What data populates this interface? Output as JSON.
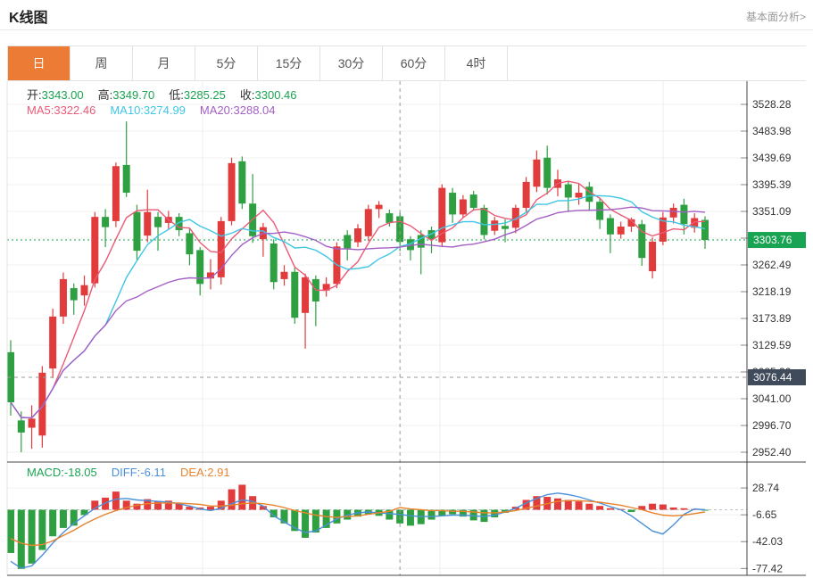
{
  "header": {
    "title": "K线图",
    "link": "基本面分析>"
  },
  "tabs": {
    "items": [
      "日",
      "周",
      "月",
      "5分",
      "15分",
      "30分",
      "60分",
      "4时"
    ],
    "active_index": 0,
    "active_color": "#ec7c35"
  },
  "chart_data": {
    "type": "candlestick",
    "main": {
      "ohlc_legend": [
        {
          "label": "开:",
          "value": "3343.00"
        },
        {
          "label": "高:",
          "value": "3349.70"
        },
        {
          "label": "低:",
          "value": "3285.25"
        },
        {
          "label": "收:",
          "value": "3300.46"
        }
      ],
      "ohlc_label_color": "#333333",
      "ohlc_value_color": "#1aa352",
      "ma_legend": [
        {
          "label": "MA5:",
          "value": "3322.46",
          "color": "#eb5a77"
        },
        {
          "label": "MA10:",
          "value": "3274.99",
          "color": "#3fc6e5"
        },
        {
          "label": "MA20:",
          "value": "3288.04",
          "color": "#a45fc5"
        }
      ],
      "ma_periods": [
        5,
        10,
        20
      ],
      "y_ticks": [
        3528.28,
        3483.98,
        3439.69,
        3395.39,
        3351.09,
        3306.79,
        3262.49,
        3218.19,
        3173.89,
        3129.59,
        3085.3,
        3041.0,
        2996.7,
        2952.4
      ],
      "y_tick_labels": [
        "3528.28",
        "3483.98",
        "3439.69",
        "3395.39",
        "3351.09",
        "",
        "3262.49",
        "3218.19",
        "3173.89",
        "3129.59",
        "3085.30",
        "3041.00",
        "2996.70",
        "2952.40"
      ],
      "ylim": [
        2952.4,
        3528.28
      ],
      "grid": true,
      "current_price": {
        "value": 3303.76,
        "label": "3303.76",
        "color": "#18a452"
      },
      "crosshair": {
        "price": 3076.44,
        "label": "3076.44",
        "candle_index": 37,
        "badge_color": "#3f4a5a"
      },
      "up_color": "#e23b3c",
      "down_color": "#2fa042",
      "candles": [
        [
          3118,
          3138,
          3013,
          3035
        ],
        [
          3005,
          3020,
          2952.4,
          2985
        ],
        [
          2993,
          3030,
          2958,
          3008
        ],
        [
          2980,
          3095,
          2960,
          3084
        ],
        [
          3091,
          3190,
          3075,
          3177
        ],
        [
          3177,
          3250,
          3165,
          3239
        ],
        [
          3224,
          3232,
          3180,
          3204
        ],
        [
          3212,
          3245,
          3195,
          3229
        ],
        [
          3232,
          3350,
          3225,
          3342
        ],
        [
          3342,
          3355,
          3292,
          3325
        ],
        [
          3335,
          3432,
          3325,
          3426
        ],
        [
          3428,
          3500,
          3375,
          3382
        ],
        [
          3350,
          3362,
          3270,
          3286
        ],
        [
          3311,
          3387,
          3300,
          3350
        ],
        [
          3342,
          3350,
          3286,
          3325
        ],
        [
          3332,
          3352,
          3322,
          3342
        ],
        [
          3342,
          3348,
          3310,
          3320
        ],
        [
          3315,
          3322,
          3262,
          3280
        ],
        [
          3287,
          3292,
          3212,
          3231
        ],
        [
          3240,
          3272,
          3222,
          3250
        ],
        [
          3242,
          3342,
          3230,
          3335
        ],
        [
          3335,
          3440,
          3328,
          3431
        ],
        [
          3434,
          3442,
          3355,
          3364
        ],
        [
          3364,
          3413,
          3299,
          3310
        ],
        [
          3305,
          3332,
          3276,
          3325
        ],
        [
          3298,
          3305,
          3222,
          3234
        ],
        [
          3239,
          3262,
          3228,
          3251
        ],
        [
          3251,
          3258,
          3165,
          3175
        ],
        [
          3183,
          3248,
          3124,
          3242
        ],
        [
          3239,
          3245,
          3161,
          3202
        ],
        [
          3220,
          3242,
          3210,
          3231
        ],
        [
          3231,
          3300,
          3224,
          3293
        ],
        [
          3312,
          3320,
          3270,
          3290
        ],
        [
          3300,
          3330,
          3292,
          3323
        ],
        [
          3310,
          3362,
          3302,
          3355
        ],
        [
          3355,
          3368,
          3340,
          3362
        ],
        [
          3348,
          3354,
          3326,
          3332
        ],
        [
          3343,
          3349.7,
          3285.25,
          3300.46
        ],
        [
          3305,
          3310,
          3270,
          3287
        ],
        [
          3312,
          3320,
          3247,
          3291
        ],
        [
          3320,
          3326,
          3282,
          3305
        ],
        [
          3300,
          3396,
          3292,
          3390
        ],
        [
          3382,
          3390,
          3332,
          3346
        ],
        [
          3346,
          3378,
          3340,
          3371
        ],
        [
          3379,
          3385,
          3352,
          3357
        ],
        [
          3357,
          3362,
          3305,
          3312
        ],
        [
          3319,
          3342,
          3312,
          3336
        ],
        [
          3327,
          3338,
          3300,
          3322
        ],
        [
          3324,
          3362,
          3315,
          3357
        ],
        [
          3357,
          3408,
          3350,
          3400
        ],
        [
          3392,
          3452,
          3383,
          3437
        ],
        [
          3440,
          3460,
          3379,
          3390
        ],
        [
          3390,
          3420,
          3376,
          3404
        ],
        [
          3396,
          3402,
          3350,
          3374
        ],
        [
          3374,
          3398,
          3362,
          3382
        ],
        [
          3392,
          3400,
          3352,
          3367
        ],
        [
          3367,
          3374,
          3322,
          3337
        ],
        [
          3340,
          3346,
          3282,
          3313
        ],
        [
          3313,
          3334,
          3306,
          3326
        ],
        [
          3326,
          3341,
          3317,
          3338
        ],
        [
          3330,
          3337,
          3261,
          3274
        ],
        [
          3252,
          3308,
          3240,
          3301
        ],
        [
          3301,
          3350,
          3295,
          3341
        ],
        [
          3341,
          3364,
          3331,
          3357
        ],
        [
          3362,
          3372,
          3313,
          3330
        ],
        [
          3324,
          3348,
          3316,
          3340
        ],
        [
          3337,
          3343,
          3289,
          3303.76
        ]
      ]
    },
    "macd": {
      "legend": [
        {
          "label": "MACD:",
          "value": "-18.05",
          "color": "#1aa352"
        },
        {
          "label": "DIFF:",
          "value": "-6.11",
          "color": "#4a90d9"
        },
        {
          "label": "DEA:",
          "value": "2.91",
          "color": "#e8832e"
        }
      ],
      "y_ticks": [
        28.74,
        -6.65,
        -42.03,
        -77.42
      ],
      "y_tick_labels": [
        "28.74",
        "-6.65",
        "-42.03",
        "-77.42"
      ],
      "hist_up_color": "#e23b3c",
      "hist_down_color": "#2fa042",
      "diff_color": "#4a90d9",
      "dea_color": "#e8832e",
      "hist": [
        -57,
        -78,
        -71,
        -53,
        -35,
        -24,
        -21,
        -7,
        12,
        16,
        24,
        12,
        8,
        14,
        11,
        12,
        8,
        4,
        3,
        4,
        12,
        27,
        33,
        18,
        5,
        -10,
        -18,
        -28,
        -37,
        -30,
        -24,
        -18,
        -13,
        -9,
        -6,
        -8,
        -13,
        -18.05,
        -21,
        -19,
        -13,
        -8,
        -6,
        -9,
        -14,
        -16,
        -10,
        -4,
        4,
        13,
        18,
        17,
        15,
        13,
        11,
        8,
        5,
        2,
        1,
        -3,
        5,
        8,
        7,
        3,
        2,
        1,
        -1
      ],
      "diff": [
        -68,
        -77,
        -74,
        -60,
        -44,
        -30,
        -18,
        -8,
        2,
        9,
        14,
        15,
        13,
        12,
        11,
        10,
        8,
        5,
        1,
        -1,
        2,
        8,
        13,
        11,
        5,
        -8,
        -16,
        -24,
        -30,
        -28,
        -20,
        -12,
        -7,
        -4,
        -3,
        -4,
        -5,
        -6.11,
        -8,
        -9,
        -9,
        -8,
        -7,
        -7,
        -8,
        -9,
        -7,
        -3,
        2,
        9,
        15,
        20,
        22,
        20,
        17,
        13,
        9,
        4,
        0,
        -8,
        -18,
        -28,
        -32,
        -20,
        -6,
        1,
        0
      ],
      "dea": [
        -38,
        -44,
        -47,
        -46,
        -41,
        -34,
        -27,
        -19,
        -12,
        -6,
        -1,
        3,
        6,
        8,
        9,
        9,
        9,
        8,
        7,
        5,
        5,
        6,
        8,
        9,
        8,
        6,
        3,
        -1,
        -4,
        -7,
        -9,
        -10,
        -9,
        -8,
        -6,
        -4,
        -2,
        2.91,
        1,
        0,
        -1,
        -1,
        -2,
        -2,
        -3,
        -4,
        -4,
        -3,
        -1,
        2,
        5,
        8,
        11,
        12,
        12,
        11,
        10,
        8,
        6,
        3,
        0,
        -4,
        -7,
        -8,
        -7,
        -5,
        -3
      ]
    }
  }
}
